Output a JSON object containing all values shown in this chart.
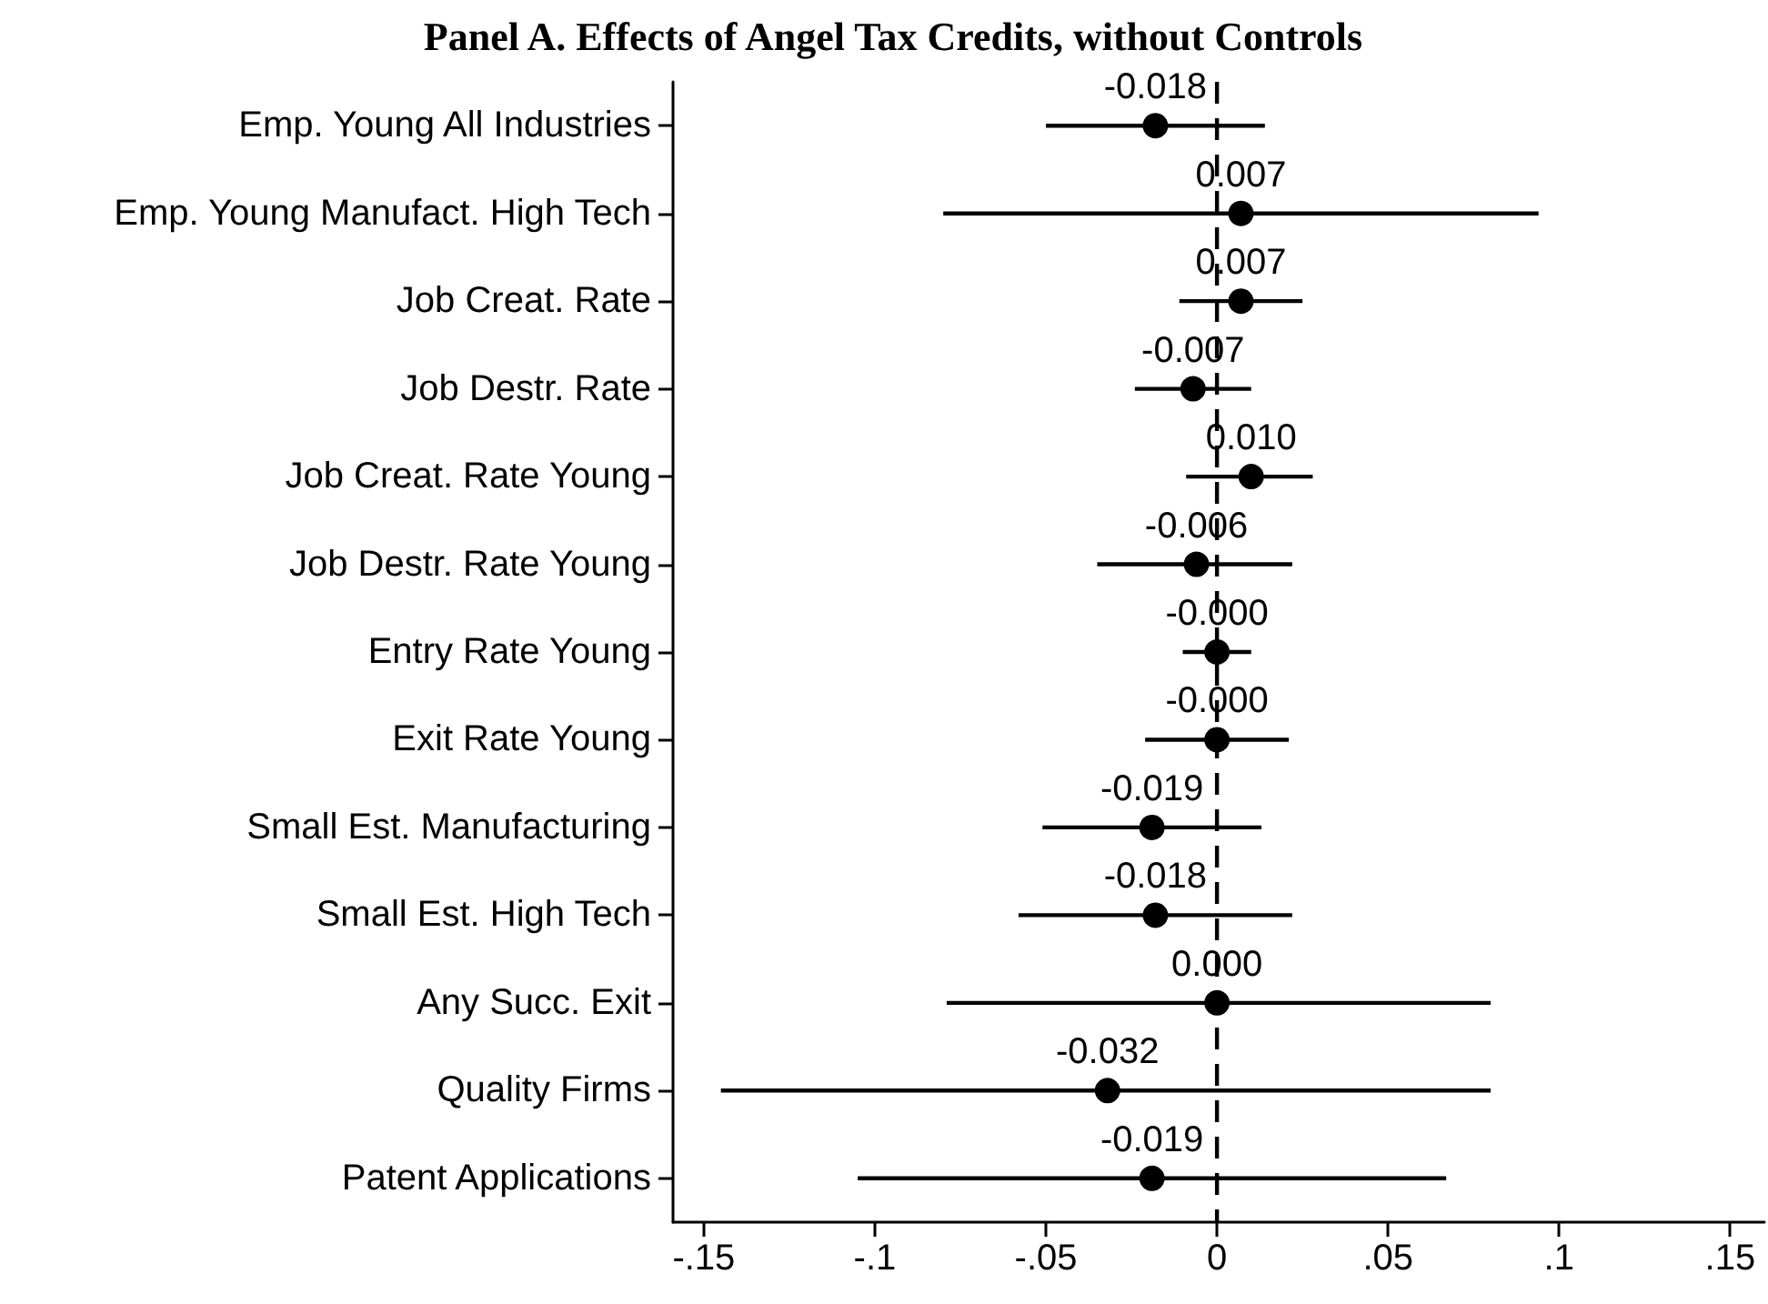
{
  "chart_data": {
    "type": "scatter",
    "orientation": "horizontal",
    "title": "Panel A. Effects of Angel Tax Credits, without Controls",
    "categories": [
      "Emp. Young All Industries",
      "Emp. Young Manufact. High Tech",
      "Job Creat. Rate",
      "Job Destr. Rate",
      "Job Creat. Rate Young",
      "Job Destr. Rate Young",
      "Entry Rate Young",
      "Exit Rate Young",
      "Small Est. Manufacturing",
      "Small Est. High Tech",
      "Any Succ. Exit",
      "Quality Firms",
      "Patent Applications"
    ],
    "values": [
      -0.018,
      0.007,
      0.007,
      -0.007,
      0.01,
      -0.006,
      0,
      0,
      -0.019,
      -0.018,
      0,
      -0.032,
      -0.019
    ],
    "value_labels": [
      "-0.018",
      "0.007",
      "0.007",
      "-0.007",
      "0.010",
      "-0.006",
      "-0.000",
      "-0.000",
      "-0.019",
      "-0.018",
      "0.000",
      "-0.032",
      "-0.019"
    ],
    "errors": [
      [
        -0.05,
        0.014
      ],
      [
        -0.08,
        0.094
      ],
      [
        -0.011,
        0.025
      ],
      [
        -0.024,
        0.01
      ],
      [
        -0.009,
        0.028
      ],
      [
        -0.035,
        0.022
      ],
      [
        -0.01,
        0.01
      ],
      [
        -0.021,
        0.021
      ],
      [
        -0.051,
        0.013
      ],
      [
        -0.058,
        0.022
      ],
      [
        -0.079,
        0.08
      ],
      [
        -0.145,
        0.08
      ],
      [
        -0.105,
        0.067
      ]
    ],
    "color": "#000000",
    "marker": "circle",
    "xlim": [
      -0.159,
      0.16
    ],
    "xticks": [
      {
        "value": -0.15,
        "label": "-.15"
      },
      {
        "value": -0.1,
        "label": "-.1"
      },
      {
        "value": -0.05,
        "label": "-.05"
      },
      0,
      {
        "value": 0.05,
        "label": ".05"
      },
      {
        "value": 0.1,
        "label": ".1"
      },
      {
        "value": 0.15,
        "label": ".15"
      }
    ],
    "ref_lines": [
      {
        "axis": "x",
        "value": 0,
        "line_style": "dashed",
        "color": "#000000"
      }
    ],
    "grid": false
  }
}
